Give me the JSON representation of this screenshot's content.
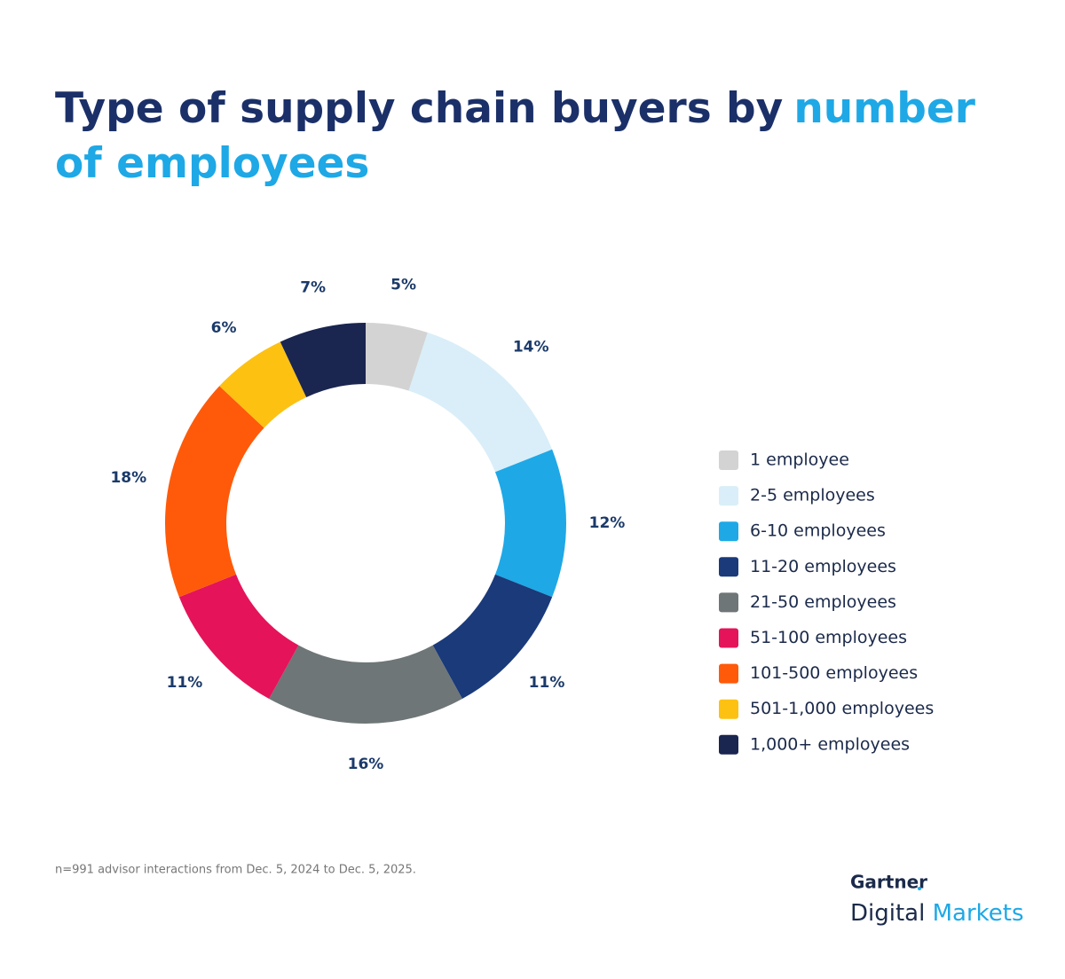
{
  "chart_data": {
    "type": "pie",
    "donut": true,
    "title": "Type of supply chain buyers by",
    "title_highlight": "number of employees",
    "categories": [
      "1 employee",
      "2-5 employees",
      "6-10 employees",
      "11-20 employees",
      "21-50 employees",
      "51-100 employees",
      "101-500 employees",
      "501-1,000 employees",
      "1,000+ employees"
    ],
    "values": [
      5,
      14,
      12,
      11,
      16,
      11,
      18,
      6,
      7
    ],
    "value_labels": [
      "5%",
      "14%",
      "12%",
      "11%",
      "16%",
      "11%",
      "18%",
      "6%",
      "7%"
    ],
    "colors": [
      "#d3d3d3",
      "#d9eef8",
      "#1ea8e6",
      "#1a3a7a",
      "#6e7677",
      "#e5135a",
      "#fe5a0a",
      "#fdc112",
      "#1a2550"
    ],
    "legend": "right",
    "footnote": "n=991 advisor interactions from Dec. 5, 2024 to Dec. 5, 2025."
  },
  "logo": {
    "brand": "Gartner",
    "product": "Digital",
    "product_highlight": "Markets"
  }
}
